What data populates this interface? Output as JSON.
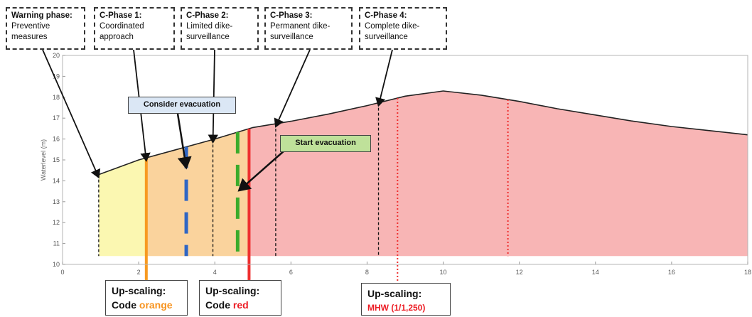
{
  "colors": {
    "yellow": "#fbf7b1",
    "orange": "#fad39d",
    "red_fill": "#f8b5b5",
    "orange_line": "#f79a22",
    "red_line": "#ee2f2f",
    "blue_dash": "#2f66c4",
    "green_dash": "#3aab2b",
    "code_orange_text": "#f7931e",
    "code_red_text": "#ec1c24",
    "mhw_text": "#ec1c24",
    "consider_bg": "#dbe7f5",
    "start_bg": "#bfe19a"
  },
  "phases": [
    {
      "title": "Warning phase:",
      "desc": "Preventive\nmeasures"
    },
    {
      "title": "C-Phase 1:",
      "desc": "Coordinated\napproach"
    },
    {
      "title": "C-Phase 2:",
      "desc": "Limited dike-\nsurveillance"
    },
    {
      "title": "C-Phase 3:",
      "desc": "Permanent dike-\nsurveillance"
    },
    {
      "title": "C-Phase 4:",
      "desc": "Complete dike-\nsurveillance"
    }
  ],
  "callouts": {
    "consider": "Consider evacuation",
    "start": "Start evacuation"
  },
  "upscaling": [
    {
      "title": "Up-scaling:",
      "prefix": "Code ",
      "code": "orange"
    },
    {
      "title": "Up-scaling:",
      "prefix": "Code ",
      "code": "red"
    },
    {
      "title": "Up-scaling:",
      "prefix": "",
      "code": "MHW (1/1,250)"
    }
  ],
  "chart_data": {
    "type": "area",
    "xlabel": "",
    "ylabel": "Waterlevel (m)",
    "xlim": [
      0,
      18
    ],
    "ylim": [
      10,
      20
    ],
    "xticks": [
      0,
      2,
      4,
      6,
      8,
      10,
      12,
      14,
      16,
      18
    ],
    "yticks": [
      10,
      11,
      12,
      13,
      14,
      15,
      16,
      17,
      18,
      19,
      20
    ],
    "grid": false,
    "curve": {
      "x": [
        0.95,
        2,
        3,
        4,
        5,
        6,
        7,
        8,
        9,
        10,
        11,
        12,
        13,
        14,
        15,
        16,
        17,
        18
      ],
      "y": [
        14.3,
        15,
        15.5,
        16,
        16.55,
        16.85,
        17.2,
        17.6,
        18.05,
        18.3,
        18.1,
        17.8,
        17.45,
        17.15,
        16.85,
        16.6,
        16.4,
        16.2
      ]
    },
    "baseline_y": 10.4,
    "regions": [
      {
        "from": 0.95,
        "to": 2.2,
        "fill": "yellow"
      },
      {
        "from": 2.2,
        "to": 4.9,
        "fill": "orange"
      },
      {
        "from": 4.9,
        "to": 18,
        "fill": "red_fill"
      }
    ],
    "phase_lines": [
      0.95,
      2.2,
      3.95,
      5.6,
      8.3
    ],
    "upscaling_lines": [
      {
        "x": 2.2,
        "color": "orange_line"
      },
      {
        "x": 4.9,
        "color": "red_line"
      }
    ],
    "dashed_lines": [
      {
        "x": 3.25,
        "color": "blue_dash"
      },
      {
        "x": 4.6,
        "color": "green_dash"
      }
    ],
    "dotted_lines": [
      8.8,
      11.7
    ]
  }
}
